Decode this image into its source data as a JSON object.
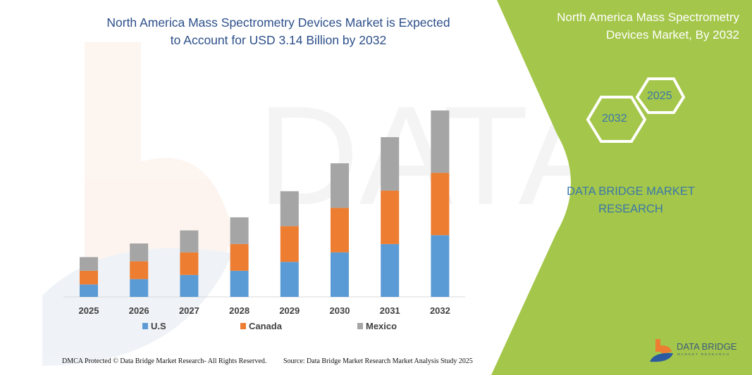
{
  "header": {
    "title_line1": "North America Mass Spectrometry Devices Market is Expected",
    "title_line2": "to Account for USD 3.14 Billion by 2032"
  },
  "side_panel": {
    "title_line1": "North America Mass Spectrometry",
    "title_line2": "Devices Market, By 2032",
    "hex_years": [
      "2025",
      "2032"
    ],
    "brand_line1": "DATA BRIDGE MARKET",
    "brand_line2": "RESEARCH",
    "logo_text": "DATA BRIDGE",
    "logo_subtext": "MARKET RESEARCH",
    "panel_color": "#a4c64a"
  },
  "footer": {
    "copyright": "DMCA Protected © Data Bridge Market Research-  All Rights Reserved.",
    "source": "Source: Data Bridge Market Research  Market Analysis Study 2025"
  },
  "chart_data": {
    "type": "bar",
    "stacked": true,
    "categories": [
      "2025",
      "2026",
      "2027",
      "2028",
      "2029",
      "2030",
      "2031",
      "2032"
    ],
    "series": [
      {
        "name": "U.S",
        "color": "#5b9bd5",
        "values": [
          0.21,
          0.3,
          0.37,
          0.44,
          0.59,
          0.75,
          0.89,
          1.04
        ]
      },
      {
        "name": "Canada",
        "color": "#ed7d31",
        "values": [
          0.23,
          0.3,
          0.38,
          0.45,
          0.6,
          0.75,
          0.9,
          1.05
        ]
      },
      {
        "name": "Mexico",
        "color": "#a5a5a5",
        "values": [
          0.23,
          0.3,
          0.37,
          0.45,
          0.59,
          0.75,
          0.9,
          1.05
        ]
      }
    ],
    "ylabel": "",
    "xlabel": "",
    "y_axis_visible": false,
    "grid": false,
    "legend": "bottom"
  }
}
